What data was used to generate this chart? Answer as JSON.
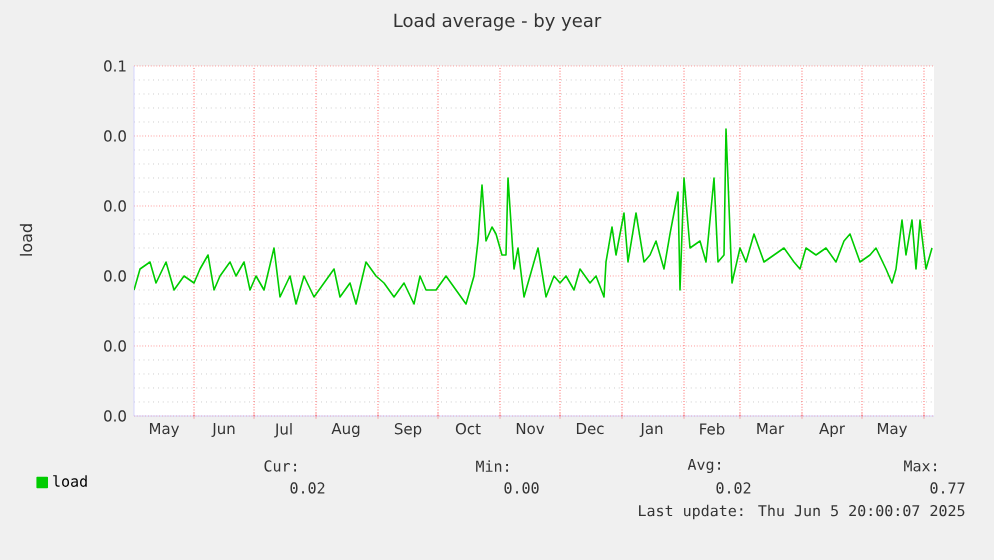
{
  "chart_data": {
    "type": "line",
    "title": "Load average - by year",
    "ylabel": "load",
    "xlim": [
      "2024-05-02",
      "2025-06-06"
    ],
    "xticks": [
      {
        "value": "2024-05-17",
        "label": "May"
      },
      {
        "value": "2024-06-01",
        "label": null
      },
      {
        "value": "2024-06-16",
        "label": "Jun"
      },
      {
        "value": "2024-07-01",
        "label": null
      },
      {
        "value": "2024-07-16",
        "label": "Jul"
      },
      {
        "value": "2024-08-01",
        "label": null
      },
      {
        "value": "2024-08-16",
        "label": "Aug"
      },
      {
        "value": "2024-09-01",
        "label": null
      },
      {
        "value": "2024-09-16",
        "label": "Sep"
      },
      {
        "value": "2024-10-01",
        "label": null
      },
      {
        "value": "2024-10-16",
        "label": "Oct"
      },
      {
        "value": "2024-11-01",
        "label": null
      },
      {
        "value": "2024-11-16",
        "label": "Nov"
      },
      {
        "value": "2024-12-01",
        "label": null
      },
      {
        "value": "2024-12-16",
        "label": "Dec"
      },
      {
        "value": "2025-01-01",
        "label": null
      },
      {
        "value": "2025-01-16",
        "label": "Jan"
      },
      {
        "value": "2025-02-01",
        "label": null
      },
      {
        "value": "2025-02-15",
        "label": "Feb"
      },
      {
        "value": "2025-03-01",
        "label": null
      },
      {
        "value": "2025-03-16",
        "label": "Mar"
      },
      {
        "value": "2025-04-01",
        "label": null
      },
      {
        "value": "2025-04-16",
        "label": "Apr"
      },
      {
        "value": "2025-05-01",
        "label": null
      },
      {
        "value": "2025-05-16",
        "label": "May"
      },
      {
        "value": "2025-06-01",
        "label": null
      }
    ],
    "ylim": [
      0,
      0.05
    ],
    "yticks": [
      {
        "value": 0,
        "label": "0.0"
      },
      {
        "value": 0.01,
        "label": "0.0"
      },
      {
        "value": 0.02,
        "label": "0.0"
      },
      {
        "value": 0.03,
        "label": "0.0"
      },
      {
        "value": 0.04,
        "label": "0.0"
      },
      {
        "value": 0.05,
        "label": "0.1"
      }
    ],
    "grid": true,
    "legend": "bottom left",
    "annotations": [
      "Cur:",
      "0.02",
      "Min:",
      "0.00",
      "Avg:",
      "0.02",
      "Max:",
      "0.77",
      "Last update: Thu Jun  5 20:00:07 2025"
    ],
    "series": [
      {
        "name": "load",
        "color": "#00cc00",
        "x": [
          "2024-05-02",
          "2024-05-05",
          "2024-05-10",
          "2024-05-13",
          "2024-05-18",
          "2024-05-22",
          "2024-05-27",
          "2024-06-01",
          "2024-06-04",
          "2024-06-08",
          "2024-06-11",
          "2024-06-14",
          "2024-06-19",
          "2024-06-22",
          "2024-06-26",
          "2024-06-29",
          "2024-07-02",
          "2024-07-06",
          "2024-07-11",
          "2024-07-14",
          "2024-07-19",
          "2024-07-22",
          "2024-07-26",
          "2024-07-31",
          "2024-08-05",
          "2024-08-10",
          "2024-08-13",
          "2024-08-18",
          "2024-08-21",
          "2024-08-26",
          "2024-08-31",
          "2024-09-04",
          "2024-09-09",
          "2024-09-14",
          "2024-09-19",
          "2024-09-22",
          "2024-09-25",
          "2024-09-30",
          "2024-10-05",
          "2024-10-10",
          "2024-10-15",
          "2024-10-19",
          "2024-10-21",
          "2024-10-23",
          "2024-10-25",
          "2024-10-28",
          "2024-10-30",
          "2024-11-02",
          "2024-11-04",
          "2024-11-05",
          "2024-11-08",
          "2024-11-10",
          "2024-11-13",
          "2024-11-16",
          "2024-11-20",
          "2024-11-24",
          "2024-11-28",
          "2024-12-01",
          "2024-12-04",
          "2024-12-08",
          "2024-12-11",
          "2024-12-16",
          "2024-12-19",
          "2024-12-23",
          "2024-12-24",
          "2024-12-27",
          "2024-12-29",
          "2025-01-02",
          "2025-01-04",
          "2025-01-08",
          "2025-01-12",
          "2025-01-15",
          "2025-01-18",
          "2025-01-22",
          "2025-01-25",
          "2025-01-29",
          "2025-01-30",
          "2025-02-01",
          "2025-02-04",
          "2025-02-09",
          "2025-02-12",
          "2025-02-16",
          "2025-02-18",
          "2025-02-21",
          "2025-02-22",
          "2025-02-25",
          "2025-03-01",
          "2025-03-04",
          "2025-03-08",
          "2025-03-13",
          "2025-03-18",
          "2025-03-23",
          "2025-03-28",
          "2025-03-31",
          "2025-04-03",
          "2025-04-08",
          "2025-04-13",
          "2025-04-18",
          "2025-04-22",
          "2025-04-25",
          "2025-04-30",
          "2025-05-05",
          "2025-05-08",
          "2025-05-13",
          "2025-05-16",
          "2025-05-18",
          "2025-05-21",
          "2025-05-23",
          "2025-05-26",
          "2025-05-28",
          "2025-05-30",
          "2025-06-02",
          "2025-06-05"
        ],
        "values": [
          0.018,
          0.021,
          0.022,
          0.019,
          0.022,
          0.018,
          0.02,
          0.019,
          0.021,
          0.023,
          0.018,
          0.02,
          0.022,
          0.02,
          0.022,
          0.018,
          0.02,
          0.018,
          0.024,
          0.017,
          0.02,
          0.016,
          0.02,
          0.017,
          0.019,
          0.021,
          0.017,
          0.019,
          0.016,
          0.022,
          0.02,
          0.019,
          0.017,
          0.019,
          0.016,
          0.02,
          0.018,
          0.018,
          0.02,
          0.018,
          0.016,
          0.02,
          0.025,
          0.033,
          0.025,
          0.027,
          0.026,
          0.023,
          0.023,
          0.034,
          0.021,
          0.024,
          0.017,
          0.02,
          0.024,
          0.017,
          0.02,
          0.019,
          0.02,
          0.018,
          0.021,
          0.019,
          0.02,
          0.017,
          0.022,
          0.027,
          0.023,
          0.029,
          0.022,
          0.029,
          0.022,
          0.023,
          0.025,
          0.021,
          0.026,
          0.032,
          0.018,
          0.034,
          0.024,
          0.025,
          0.022,
          0.034,
          0.022,
          0.023,
          0.041,
          0.019,
          0.024,
          0.022,
          0.026,
          0.022,
          0.023,
          0.024,
          0.022,
          0.021,
          0.024,
          0.023,
          0.024,
          0.022,
          0.025,
          0.026,
          0.022,
          0.023,
          0.024,
          0.021,
          0.019,
          0.021,
          0.028,
          0.023,
          0.028,
          0.021,
          0.028,
          0.021,
          0.024
        ]
      }
    ]
  }
}
